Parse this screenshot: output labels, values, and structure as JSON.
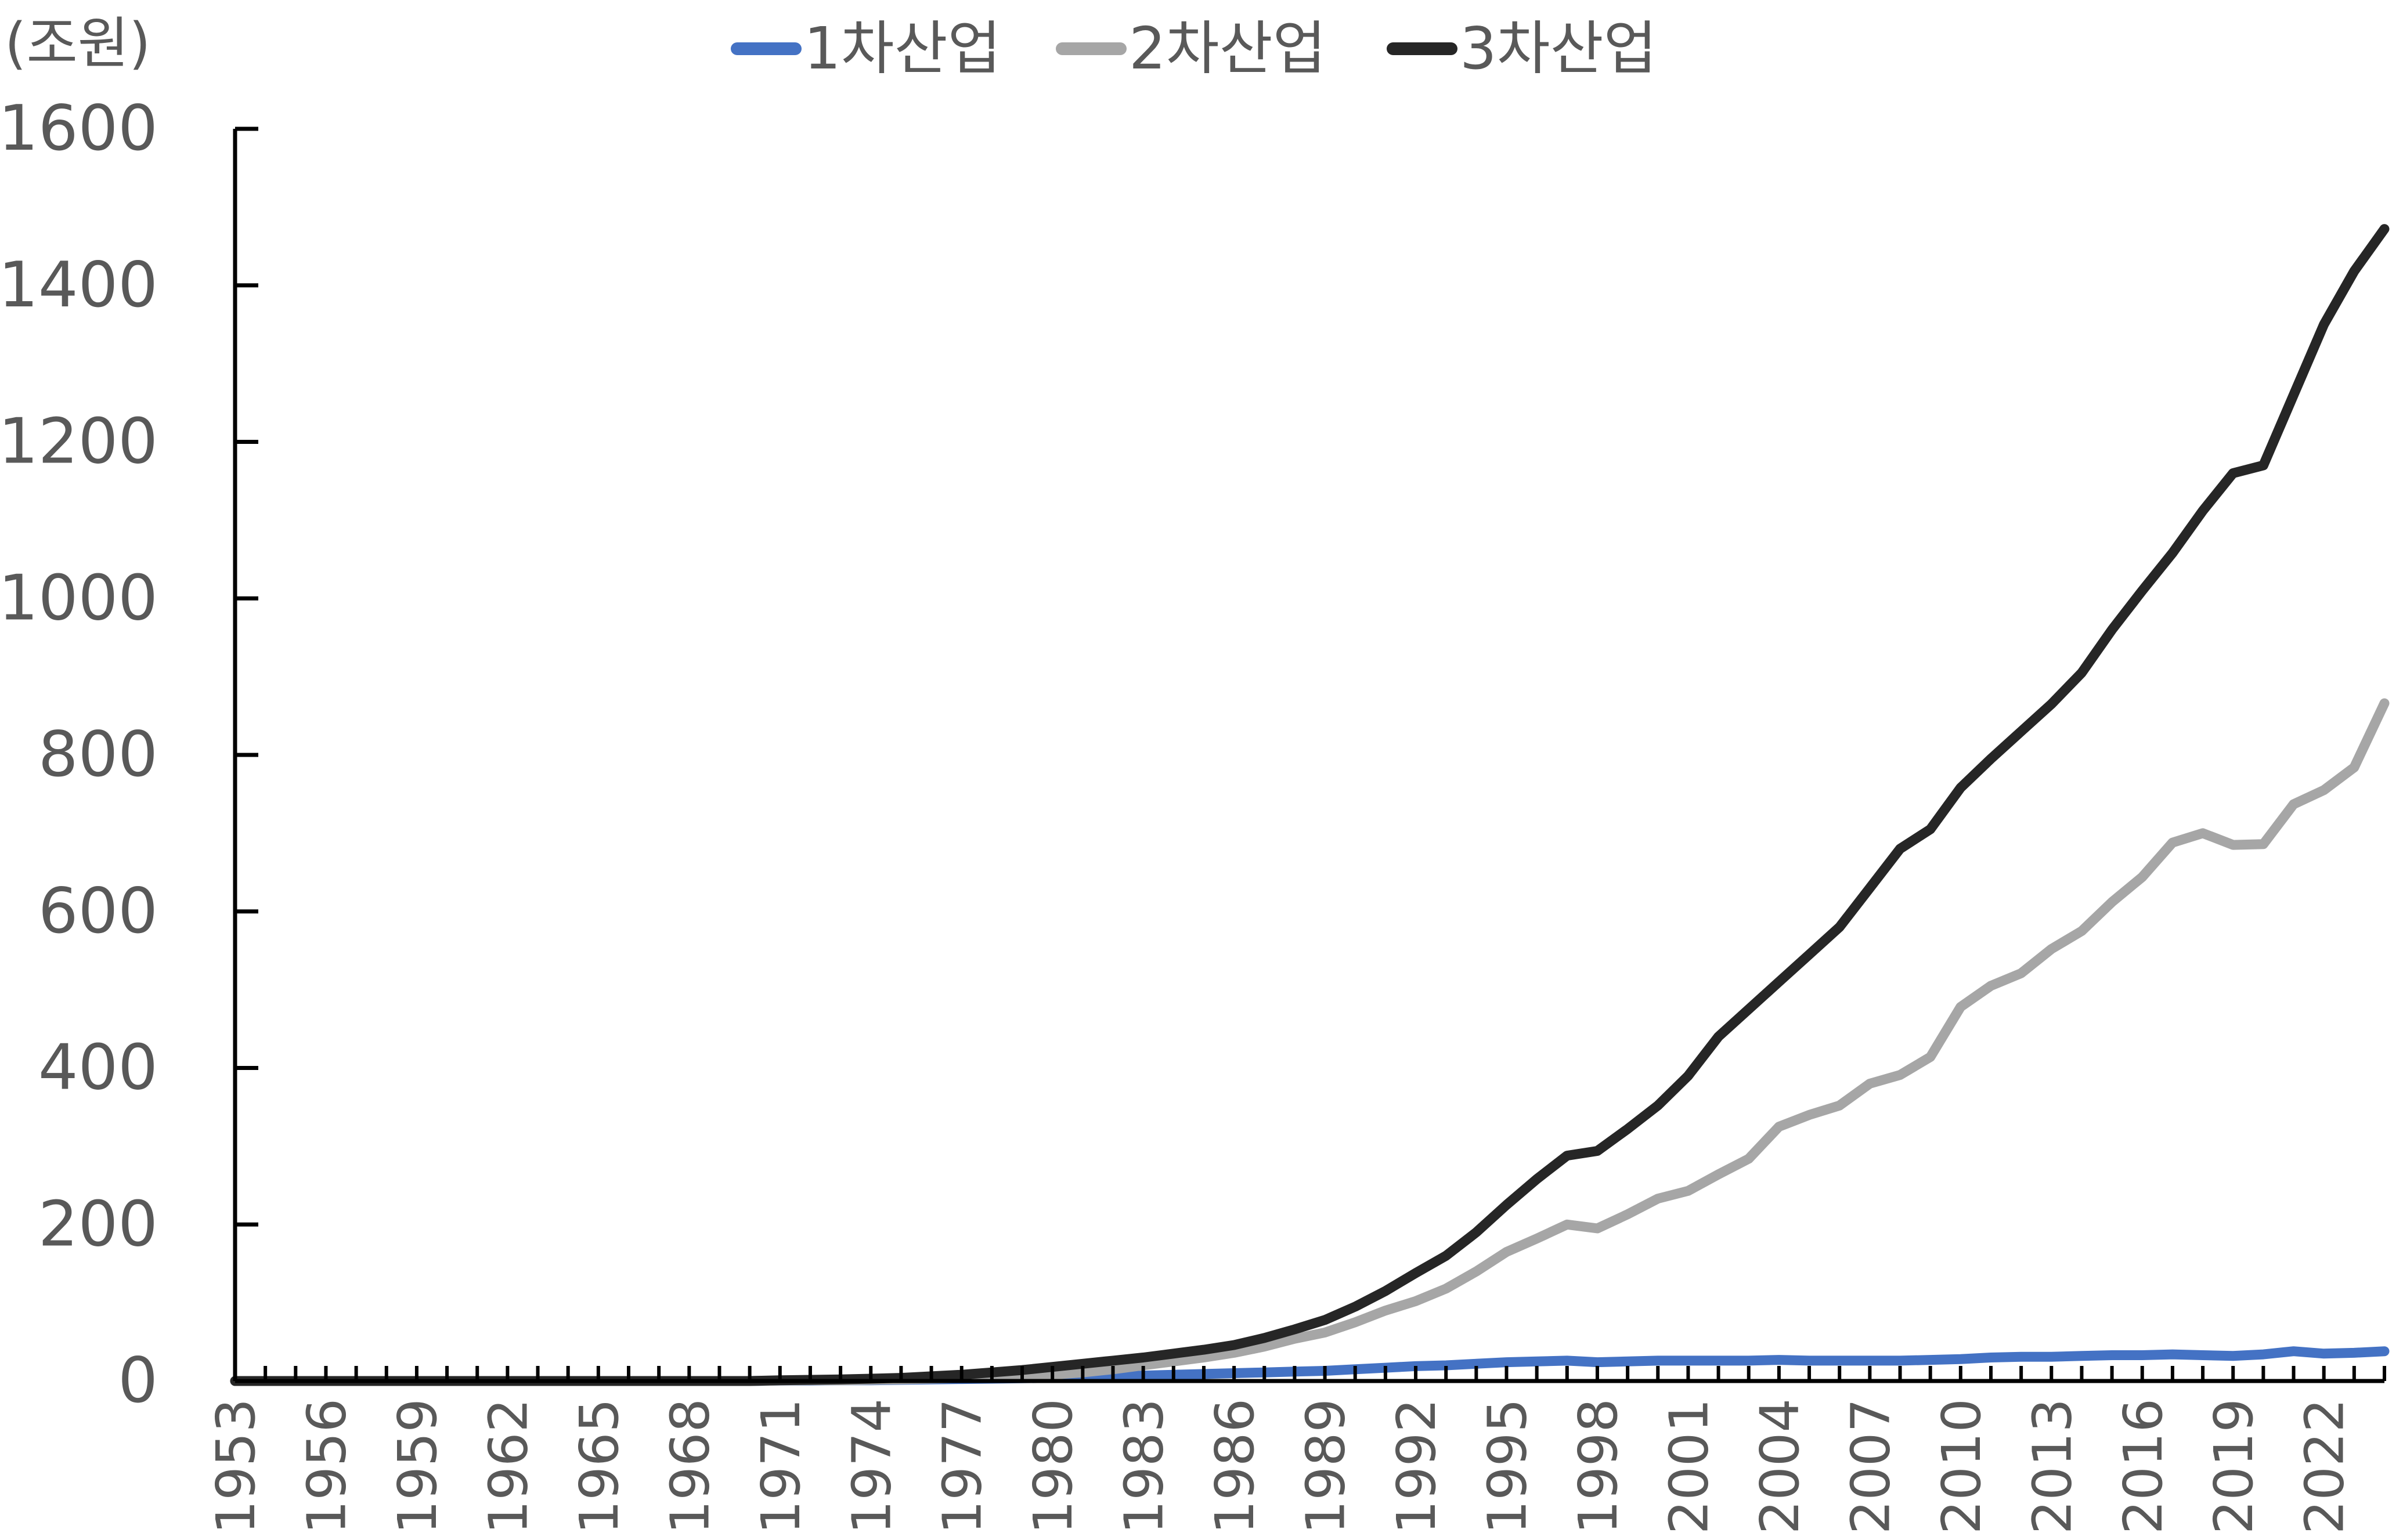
{
  "chart_data": {
    "type": "line",
    "title": "",
    "unit_label": "(조원)",
    "xlabel": "",
    "ylabel": "",
    "ylim": [
      0,
      1600
    ],
    "yticks": [
      0,
      200,
      400,
      600,
      800,
      1000,
      1200,
      1400,
      1600
    ],
    "xlim": [
      1953,
      2024
    ],
    "xtick_labels": [
      "1953",
      "1956",
      "1959",
      "1962",
      "1965",
      "1968",
      "1971",
      "1974",
      "1977",
      "1980",
      "1983",
      "1986",
      "1989",
      "1992",
      "1995",
      "1998",
      "2001",
      "2004",
      "2007",
      "2010",
      "2013",
      "2016",
      "2019",
      "2022"
    ],
    "grid": false,
    "legend_position": "top",
    "years": [
      1953,
      1954,
      1955,
      1956,
      1957,
      1958,
      1959,
      1960,
      1961,
      1962,
      1963,
      1964,
      1965,
      1966,
      1967,
      1968,
      1969,
      1970,
      1971,
      1972,
      1973,
      1974,
      1975,
      1976,
      1977,
      1978,
      1979,
      1980,
      1981,
      1982,
      1983,
      1984,
      1985,
      1986,
      1987,
      1988,
      1989,
      1990,
      1991,
      1992,
      1993,
      1994,
      1995,
      1996,
      1997,
      1998,
      1999,
      2000,
      2001,
      2002,
      2003,
      2004,
      2005,
      2006,
      2007,
      2008,
      2009,
      2010,
      2011,
      2012,
      2013,
      2014,
      2015,
      2016,
      2017,
      2018,
      2019,
      2020,
      2021,
      2022,
      2023,
      2024
    ],
    "series": [
      {
        "name": "1차산업",
        "color": "#4472C4",
        "values": [
          0,
          0,
          0,
          0,
          0,
          0,
          0,
          0,
          0,
          0,
          0,
          0,
          0,
          0,
          0,
          0,
          0,
          0,
          0.5,
          0.5,
          1,
          1,
          1.5,
          2,
          2.5,
          3,
          3.5,
          4,
          5,
          6,
          7,
          8,
          9,
          10,
          11,
          12,
          13,
          15,
          17,
          19,
          20,
          22,
          24,
          25,
          26,
          24,
          25,
          26,
          26,
          26,
          26,
          27,
          26,
          26,
          26,
          26,
          27,
          28,
          30,
          31,
          31,
          32,
          33,
          33,
          34,
          33,
          32,
          34,
          38,
          35,
          36,
          38
        ]
      },
      {
        "name": "2차산업",
        "color": "#A6A6A6",
        "values": [
          0,
          0,
          0,
          0,
          0,
          0,
          0,
          0,
          0,
          0,
          0,
          0,
          0,
          0,
          0,
          0,
          0,
          0,
          0.5,
          1,
          1,
          1.5,
          2,
          3,
          4,
          5,
          6,
          8,
          11,
          15,
          20,
          25,
          30,
          36,
          44,
          54,
          62,
          75,
          90,
          102,
          118,
          140,
          165,
          182,
          200,
          195,
          213,
          233,
          243,
          264,
          284,
          325,
          340,
          352,
          380,
          391,
          414,
          478,
          505,
          521,
          552,
          575,
          612,
          644,
          688,
          700,
          685,
          686,
          737,
          755,
          784,
          866
        ]
      },
      {
        "name": "3차산업",
        "color": "#262626",
        "values": [
          0,
          0,
          0,
          0,
          0,
          0,
          0,
          0,
          0,
          0,
          0,
          0,
          0,
          0,
          0,
          0,
          0,
          0,
          1,
          1.5,
          2,
          3,
          4,
          6,
          8,
          11,
          14,
          18,
          22,
          26,
          30,
          35,
          40,
          46,
          55,
          66,
          78,
          95,
          115,
          138,
          160,
          190,
          225,
          258,
          288,
          294,
          322,
          352,
          390,
          440,
          475,
          510,
          545,
          580,
          630,
          680,
          705,
          758,
          795,
          830,
          865,
          905,
          960,
          1010,
          1058,
          1112,
          1160,
          1170,
          1260,
          1350,
          1418,
          1472
        ]
      }
    ]
  }
}
